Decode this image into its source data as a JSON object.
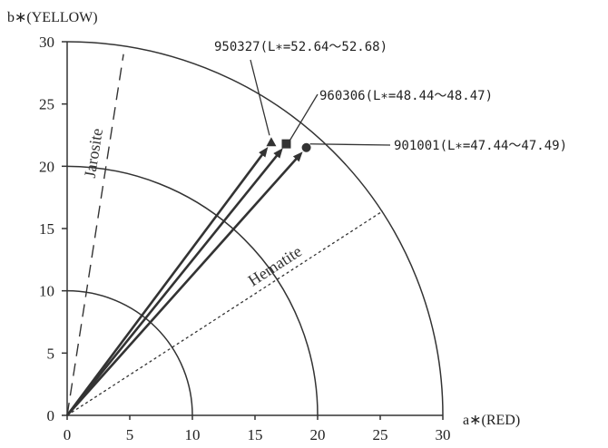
{
  "chart_data": {
    "type": "scatter",
    "xlabel": "a∗(RED)",
    "ylabel": "b∗(YELLOW)",
    "xlim": [
      0,
      30
    ],
    "ylim": [
      0,
      30
    ],
    "x_ticks": [
      "0",
      "5",
      "10",
      "15",
      "20",
      "25",
      "30"
    ],
    "y_ticks": [
      "0",
      "5",
      "10",
      "15",
      "20",
      "25",
      "30"
    ],
    "arcs_radius": [
      10,
      20,
      30
    ],
    "grid": false,
    "reference_lines": [
      {
        "label": "Jarosite",
        "style": "dashed",
        "end": [
          4.5,
          29.0
        ]
      },
      {
        "label": "Hematite",
        "style": "dotted",
        "end": [
          25.2,
          16.4
        ]
      }
    ],
    "series": [
      {
        "label": "950327(L∗=52.64～52.68)",
        "marker": "triangle",
        "a": 16.3,
        "b": 21.9
      },
      {
        "label": "960306(L∗=48.44～48.47)",
        "marker": "square",
        "a": 17.5,
        "b": 21.8
      },
      {
        "label": "901001(L∗=47.44～47.49)",
        "marker": "circle",
        "a": 19.1,
        "b": 21.5
      }
    ]
  }
}
